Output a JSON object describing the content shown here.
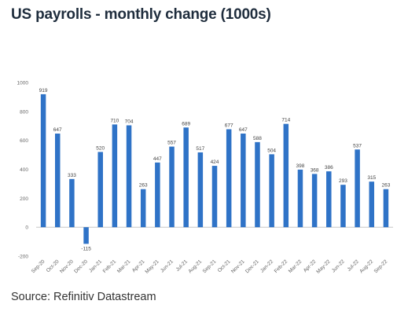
{
  "chart_data": {
    "type": "bar",
    "title": "US payrolls - monthly change (1000s)",
    "source": "Source: Refinitiv Datastream",
    "xlabel": "",
    "ylabel": "",
    "ylim": [
      -200,
      1000
    ],
    "yticks": [
      -200,
      0,
      200,
      400,
      600,
      800,
      1000
    ],
    "grid": false,
    "legend": "none",
    "bar_color": "#2f73c7",
    "categories": [
      "Sep-20",
      "Oct-20",
      "Nov-20",
      "Dec-20",
      "Jan-21",
      "Feb-21",
      "Mar-21",
      "Apr-21",
      "May-21",
      "Jun-21",
      "Jul-21",
      "Aug-21",
      "Sep-21",
      "Oct-21",
      "Nov-21",
      "Dec-21",
      "Jan-22",
      "Feb-22",
      "Mar-22",
      "Apr-22",
      "May-22",
      "Jun-22",
      "Jul-22",
      "Aug-22",
      "Sep-22"
    ],
    "values": [
      919,
      647,
      333,
      -115,
      520,
      710,
      704,
      263,
      447,
      557,
      689,
      517,
      424,
      677,
      647,
      588,
      504,
      714,
      398,
      368,
      386,
      293,
      537,
      315,
      263
    ]
  }
}
